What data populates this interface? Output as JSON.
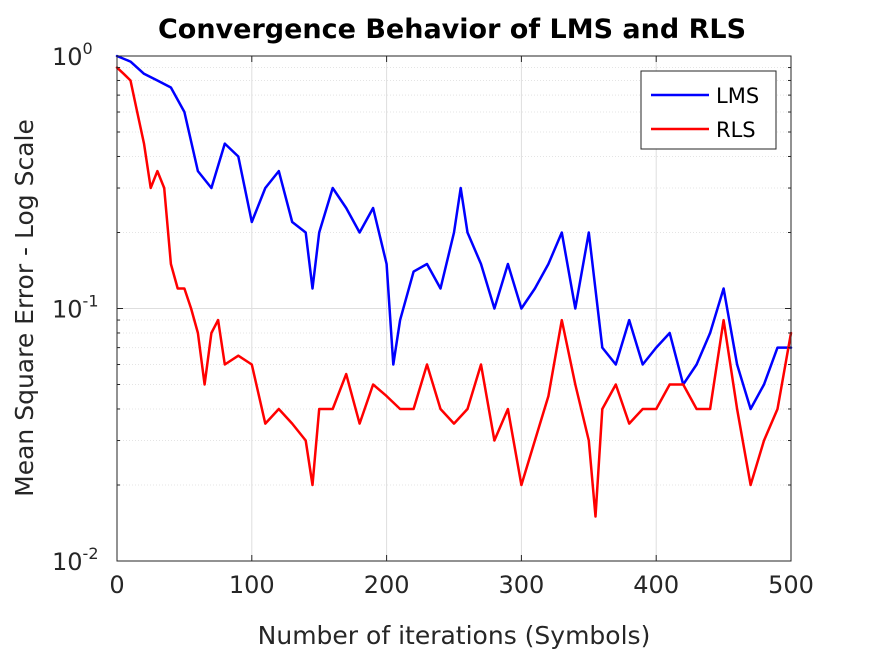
{
  "chart_data": {
    "type": "line",
    "title": "Convergence Behavior of LMS and RLS",
    "xlabel": "Number of iterations (Symbols)",
    "ylabel": "Mean Square Error - Log Scale",
    "xlim": [
      0,
      500
    ],
    "ylim": [
      0.01,
      1
    ],
    "yscale": "log",
    "grid": true,
    "legend_position": "top-right",
    "x_ticks": [
      "0",
      "100",
      "200",
      "300",
      "400",
      "500"
    ],
    "y_ticks": [
      {
        "base": "10",
        "exp": "-2",
        "value": 0.01
      },
      {
        "base": "10",
        "exp": "-1",
        "value": 0.1
      },
      {
        "base": "10",
        "exp": "0",
        "value": 1
      }
    ],
    "series": [
      {
        "name": "LMS",
        "color": "#0000ff",
        "x": [
          0,
          10,
          20,
          30,
          40,
          50,
          60,
          70,
          80,
          90,
          100,
          110,
          120,
          130,
          140,
          145,
          150,
          160,
          170,
          180,
          190,
          200,
          205,
          210,
          220,
          230,
          240,
          250,
          255,
          260,
          270,
          280,
          290,
          300,
          310,
          320,
          330,
          340,
          350,
          360,
          370,
          380,
          390,
          400,
          410,
          420,
          430,
          440,
          450,
          460,
          470,
          480,
          490,
          500
        ],
        "y": [
          1.0,
          0.95,
          0.85,
          0.8,
          0.75,
          0.6,
          0.35,
          0.3,
          0.45,
          0.4,
          0.22,
          0.3,
          0.35,
          0.22,
          0.2,
          0.12,
          0.2,
          0.3,
          0.25,
          0.2,
          0.25,
          0.15,
          0.06,
          0.09,
          0.14,
          0.15,
          0.12,
          0.2,
          0.3,
          0.2,
          0.15,
          0.1,
          0.15,
          0.1,
          0.12,
          0.15,
          0.2,
          0.1,
          0.2,
          0.07,
          0.06,
          0.09,
          0.06,
          0.07,
          0.08,
          0.05,
          0.06,
          0.08,
          0.12,
          0.06,
          0.04,
          0.05,
          0.07,
          0.07
        ]
      },
      {
        "name": "RLS",
        "color": "#ff0000",
        "x": [
          0,
          5,
          10,
          15,
          20,
          25,
          30,
          35,
          40,
          45,
          50,
          55,
          60,
          65,
          70,
          75,
          80,
          90,
          100,
          110,
          120,
          130,
          140,
          145,
          150,
          160,
          170,
          180,
          190,
          200,
          210,
          220,
          230,
          240,
          250,
          260,
          270,
          280,
          290,
          300,
          310,
          320,
          330,
          340,
          350,
          355,
          360,
          370,
          380,
          390,
          400,
          410,
          420,
          430,
          440,
          450,
          460,
          470,
          480,
          490,
          500
        ],
        "y": [
          0.9,
          0.85,
          0.8,
          0.6,
          0.45,
          0.3,
          0.35,
          0.3,
          0.15,
          0.12,
          0.12,
          0.1,
          0.08,
          0.05,
          0.08,
          0.09,
          0.06,
          0.065,
          0.06,
          0.035,
          0.04,
          0.035,
          0.03,
          0.02,
          0.04,
          0.04,
          0.055,
          0.035,
          0.05,
          0.045,
          0.04,
          0.04,
          0.06,
          0.04,
          0.035,
          0.04,
          0.06,
          0.03,
          0.04,
          0.02,
          0.03,
          0.045,
          0.09,
          0.05,
          0.03,
          0.015,
          0.04,
          0.05,
          0.035,
          0.04,
          0.04,
          0.05,
          0.05,
          0.04,
          0.04,
          0.09,
          0.04,
          0.02,
          0.03,
          0.04,
          0.08
        ]
      }
    ]
  }
}
